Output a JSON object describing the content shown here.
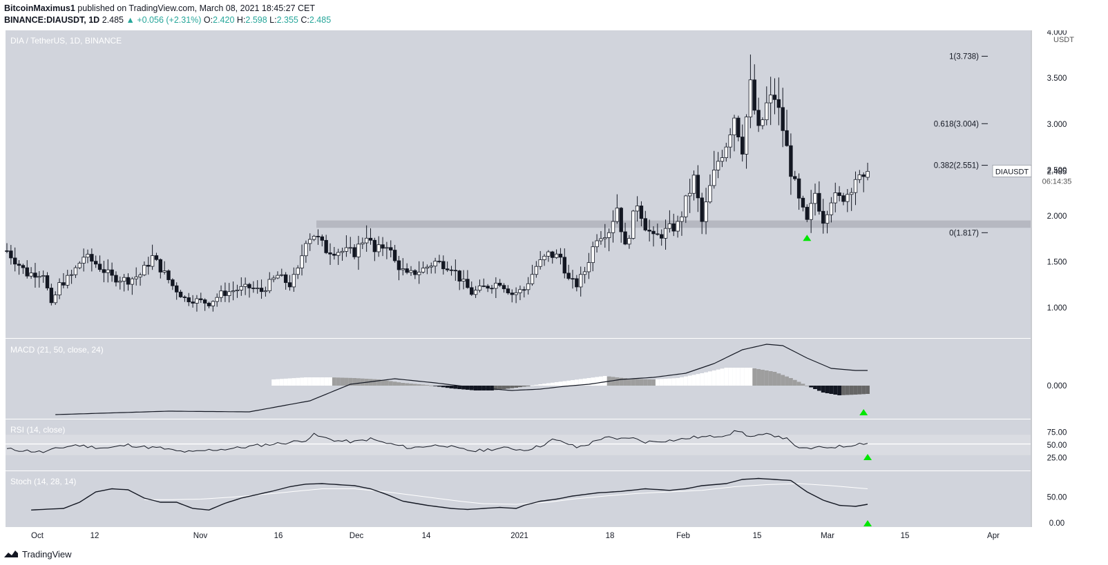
{
  "header": {
    "publisher": "BitcoinMaximus1",
    "published_text": "published on TradingView.com, March 08, 2021 18:45:27 CET",
    "symbol": "BINANCE:DIAUSDT, 1D",
    "last": "2.485",
    "change": "+0.056 (+2.31%)",
    "o_label": "O:",
    "o_value": "2.420",
    "h_label": "H:",
    "h_value": "2.598",
    "l_label": "L:",
    "l_value": "2.355",
    "c_label": "C:",
    "c_value": "2.485"
  },
  "footer": {
    "brand": "TradingView"
  },
  "colors": {
    "pane_bg": "#d1d4dc",
    "up_body": "#ffffff",
    "down_body": "#131722",
    "support_zone": "#b2b5be",
    "signal_arrow": "#00e600",
    "axis_bg": "#ffffff"
  },
  "chart_data": {
    "type": "candlestick",
    "title": "DIA / TetherUS, 1D, BINANCE",
    "currency": "USDT",
    "price_axis_ticks": [
      "4.000",
      "3.500",
      "3.000",
      "2.500",
      "2.000",
      "1.500",
      "1.000"
    ],
    "price_range": [
      0.67,
      4.02
    ],
    "x_ticks": [
      "Oct",
      "12",
      "Nov",
      "16",
      "Dec",
      "14",
      "2021",
      "18",
      "Feb",
      "15",
      "Mar",
      "15",
      "Apr"
    ],
    "support_zone": [
      1.87,
      1.95
    ],
    "fib_levels": [
      {
        "label": "1(3.738)",
        "price": 3.738
      },
      {
        "label": "0.618(3.004)",
        "price": 3.004
      },
      {
        "label": "0.382(2.551)",
        "price": 2.551
      },
      {
        "label": "0(1.817)",
        "price": 1.817
      }
    ],
    "last_price_label": {
      "symbol": "DIAUSDT",
      "price": "2.485",
      "countdown": "06:14:35"
    },
    "price_anchors": [
      [
        0,
        1.62
      ],
      [
        5,
        1.37
      ],
      [
        9,
        1.38
      ],
      [
        11,
        1.02
      ],
      [
        13,
        1.25
      ],
      [
        16,
        1.35
      ],
      [
        19,
        1.56
      ],
      [
        22,
        1.48
      ],
      [
        26,
        1.33
      ],
      [
        30,
        1.3
      ],
      [
        33,
        1.36
      ],
      [
        36,
        1.55
      ],
      [
        39,
        1.37
      ],
      [
        41,
        1.24
      ],
      [
        44,
        1.1
      ],
      [
        47,
        1.08
      ],
      [
        50,
        1.05
      ],
      [
        53,
        1.15
      ],
      [
        57,
        1.2
      ],
      [
        60,
        1.22
      ],
      [
        63,
        1.18
      ],
      [
        67,
        1.35
      ],
      [
        70,
        1.25
      ],
      [
        72,
        1.4
      ],
      [
        74,
        1.75
      ],
      [
        76,
        1.8
      ],
      [
        79,
        1.63
      ],
      [
        82,
        1.62
      ],
      [
        86,
        1.6
      ],
      [
        89,
        1.8
      ],
      [
        91,
        1.6
      ],
      [
        94,
        1.7
      ],
      [
        96,
        1.5
      ],
      [
        99,
        1.35
      ],
      [
        103,
        1.42
      ],
      [
        106,
        1.5
      ],
      [
        110,
        1.45
      ],
      [
        112,
        1.32
      ],
      [
        115,
        1.16
      ],
      [
        118,
        1.22
      ],
      [
        122,
        1.28
      ],
      [
        125,
        1.15
      ],
      [
        128,
        1.2
      ],
      [
        131,
        1.45
      ],
      [
        134,
        1.58
      ],
      [
        137,
        1.55
      ],
      [
        139,
        1.3
      ],
      [
        141,
        1.25
      ],
      [
        143,
        1.4
      ],
      [
        146,
        1.78
      ],
      [
        149,
        1.85
      ],
      [
        151,
        2.1
      ],
      [
        153,
        1.65
      ],
      [
        156,
        2.15
      ],
      [
        158,
        1.9
      ],
      [
        160,
        1.75
      ],
      [
        163,
        1.83
      ],
      [
        166,
        1.9
      ],
      [
        170,
        2.4
      ],
      [
        172,
        1.93
      ],
      [
        174,
        2.3
      ],
      [
        176,
        2.6
      ],
      [
        178,
        2.8
      ],
      [
        180,
        3.1
      ],
      [
        182,
        2.75
      ],
      [
        184,
        3.4
      ],
      [
        186,
        2.9
      ],
      [
        188,
        3.2
      ],
      [
        190,
        3.3
      ],
      [
        192,
        2.95
      ],
      [
        194,
        2.5
      ],
      [
        196,
        2.15
      ],
      [
        198,
        1.92
      ],
      [
        200,
        2.25
      ],
      [
        202,
        1.97
      ],
      [
        204,
        2.2
      ],
      [
        206,
        2.18
      ],
      [
        208,
        2.25
      ],
      [
        210,
        2.42
      ],
      [
        212,
        2.35
      ],
      [
        213,
        2.485
      ]
    ],
    "macd": {
      "label": "MACD (21, 50, close, 24)",
      "zero_tick": "0.000",
      "macd_line": [
        [
          12,
          -0.42
        ],
        [
          40,
          -0.37
        ],
        [
          60,
          -0.38
        ],
        [
          75,
          -0.22
        ],
        [
          85,
          0.02
        ],
        [
          96,
          0.1
        ],
        [
          106,
          0.04
        ],
        [
          116,
          -0.03
        ],
        [
          125,
          -0.07
        ],
        [
          132,
          -0.05
        ],
        [
          138,
          -0.01
        ],
        [
          144,
          0.02
        ],
        [
          152,
          0.09
        ],
        [
          160,
          0.12
        ],
        [
          168,
          0.18
        ],
        [
          175,
          0.32
        ],
        [
          182,
          0.52
        ],
        [
          188,
          0.6
        ],
        [
          192,
          0.58
        ],
        [
          198,
          0.4
        ],
        [
          204,
          0.25
        ],
        [
          210,
          0.22
        ],
        [
          213,
          0.22
        ]
      ],
      "histogram": [
        [
          66,
          0.09
        ],
        [
          74,
          0.12
        ],
        [
          80,
          0.12
        ],
        [
          86,
          0.11
        ],
        [
          92,
          0.09
        ],
        [
          98,
          0.04
        ],
        [
          104,
          0.01
        ],
        [
          110,
          -0.04
        ],
        [
          116,
          -0.07
        ],
        [
          120,
          -0.07
        ],
        [
          126,
          -0.03
        ],
        [
          132,
          0.02
        ],
        [
          140,
          0.08
        ],
        [
          148,
          0.14
        ],
        [
          154,
          0.1
        ],
        [
          160,
          0.09
        ],
        [
          166,
          0.11
        ],
        [
          172,
          0.18
        ],
        [
          178,
          0.26
        ],
        [
          184,
          0.26
        ],
        [
          190,
          0.2
        ],
        [
          194,
          0.11
        ],
        [
          198,
          0.0
        ],
        [
          202,
          -0.1
        ],
        [
          206,
          -0.14
        ],
        [
          210,
          -0.13
        ],
        [
          213,
          -0.12
        ]
      ],
      "range": [
        -0.48,
        0.68
      ]
    },
    "rsi": {
      "label": "RSI (14, close)",
      "ticks": [
        "75.00",
        "50.00",
        "25.00"
      ],
      "band": [
        30,
        70
      ],
      "midline": 52,
      "anchors": [
        [
          0,
          42
        ],
        [
          6,
          38
        ],
        [
          9,
          36
        ],
        [
          13,
          44
        ],
        [
          17,
          50
        ],
        [
          21,
          46
        ],
        [
          25,
          44
        ],
        [
          30,
          50
        ],
        [
          34,
          46
        ],
        [
          38,
          44
        ],
        [
          42,
          38
        ],
        [
          46,
          36
        ],
        [
          50,
          40
        ],
        [
          54,
          42
        ],
        [
          58,
          45
        ],
        [
          62,
          49
        ],
        [
          66,
          52
        ],
        [
          70,
          55
        ],
        [
          74,
          60
        ],
        [
          76,
          70
        ],
        [
          78,
          65
        ],
        [
          82,
          58
        ],
        [
          86,
          56
        ],
        [
          90,
          62
        ],
        [
          93,
          55
        ],
        [
          96,
          50
        ],
        [
          100,
          44
        ],
        [
          104,
          48
        ],
        [
          108,
          50
        ],
        [
          112,
          42
        ],
        [
          116,
          38
        ],
        [
          120,
          42
        ],
        [
          124,
          44
        ],
        [
          128,
          40
        ],
        [
          132,
          48
        ],
        [
          135,
          60
        ],
        [
          138,
          55
        ],
        [
          141,
          45
        ],
        [
          144,
          52
        ],
        [
          148,
          66
        ],
        [
          151,
          60
        ],
        [
          154,
          65
        ],
        [
          158,
          56
        ],
        [
          162,
          58
        ],
        [
          166,
          60
        ],
        [
          170,
          65
        ],
        [
          174,
          66
        ],
        [
          178,
          70
        ],
        [
          181,
          78
        ],
        [
          184,
          66
        ],
        [
          188,
          70
        ],
        [
          191,
          68
        ],
        [
          194,
          58
        ],
        [
          196,
          42
        ],
        [
          200,
          44
        ],
        [
          204,
          46
        ],
        [
          208,
          48
        ],
        [
          210,
          52
        ],
        [
          213,
          54
        ]
      ],
      "range": [
        0,
        100
      ]
    },
    "stoch": {
      "label": "Stoch (14, 28, 14)",
      "ticks": [
        "50.00",
        "0.00"
      ],
      "k_line": [
        [
          6,
          25
        ],
        [
          14,
          28
        ],
        [
          18,
          40
        ],
        [
          22,
          60
        ],
        [
          26,
          66
        ],
        [
          30,
          64
        ],
        [
          34,
          48
        ],
        [
          38,
          40
        ],
        [
          42,
          40
        ],
        [
          46,
          28
        ],
        [
          50,
          25
        ],
        [
          54,
          38
        ],
        [
          58,
          48
        ],
        [
          62,
          55
        ],
        [
          66,
          62
        ],
        [
          70,
          70
        ],
        [
          74,
          75
        ],
        [
          78,
          76
        ],
        [
          82,
          74
        ],
        [
          86,
          72
        ],
        [
          90,
          66
        ],
        [
          94,
          55
        ],
        [
          98,
          42
        ],
        [
          104,
          34
        ],
        [
          110,
          28
        ],
        [
          114,
          26
        ],
        [
          118,
          28
        ],
        [
          122,
          30
        ],
        [
          126,
          28
        ],
        [
          128,
          34
        ],
        [
          132,
          42
        ],
        [
          136,
          46
        ],
        [
          140,
          52
        ],
        [
          146,
          58
        ],
        [
          152,
          61
        ],
        [
          158,
          66
        ],
        [
          164,
          63
        ],
        [
          168,
          66
        ],
        [
          172,
          72
        ],
        [
          178,
          76
        ],
        [
          182,
          84
        ],
        [
          186,
          86
        ],
        [
          190,
          84
        ],
        [
          194,
          82
        ],
        [
          198,
          60
        ],
        [
          202,
          44
        ],
        [
          206,
          34
        ],
        [
          210,
          32
        ],
        [
          213,
          36
        ]
      ],
      "d_line": [
        [
          34,
          45
        ],
        [
          40,
          45
        ],
        [
          48,
          46
        ],
        [
          56,
          50
        ],
        [
          62,
          54
        ],
        [
          70,
          60
        ],
        [
          78,
          66
        ],
        [
          86,
          66
        ],
        [
          94,
          60
        ],
        [
          100,
          54
        ],
        [
          106,
          48
        ],
        [
          112,
          42
        ],
        [
          118,
          37
        ],
        [
          126,
          36
        ],
        [
          134,
          40
        ],
        [
          140,
          46
        ],
        [
          148,
          52
        ],
        [
          156,
          57
        ],
        [
          164,
          60
        ],
        [
          172,
          63
        ],
        [
          180,
          70
        ],
        [
          188,
          74
        ],
        [
          196,
          76
        ],
        [
          204,
          72
        ],
        [
          210,
          68
        ],
        [
          213,
          66
        ]
      ],
      "range": [
        -8,
        100
      ]
    },
    "signal_arrows": [
      {
        "pane": "price",
        "x": 198
      },
      {
        "pane": "macd",
        "x": 212
      },
      {
        "pane": "rsi",
        "x": 213
      },
      {
        "pane": "stoch",
        "x": 213
      }
    ]
  }
}
